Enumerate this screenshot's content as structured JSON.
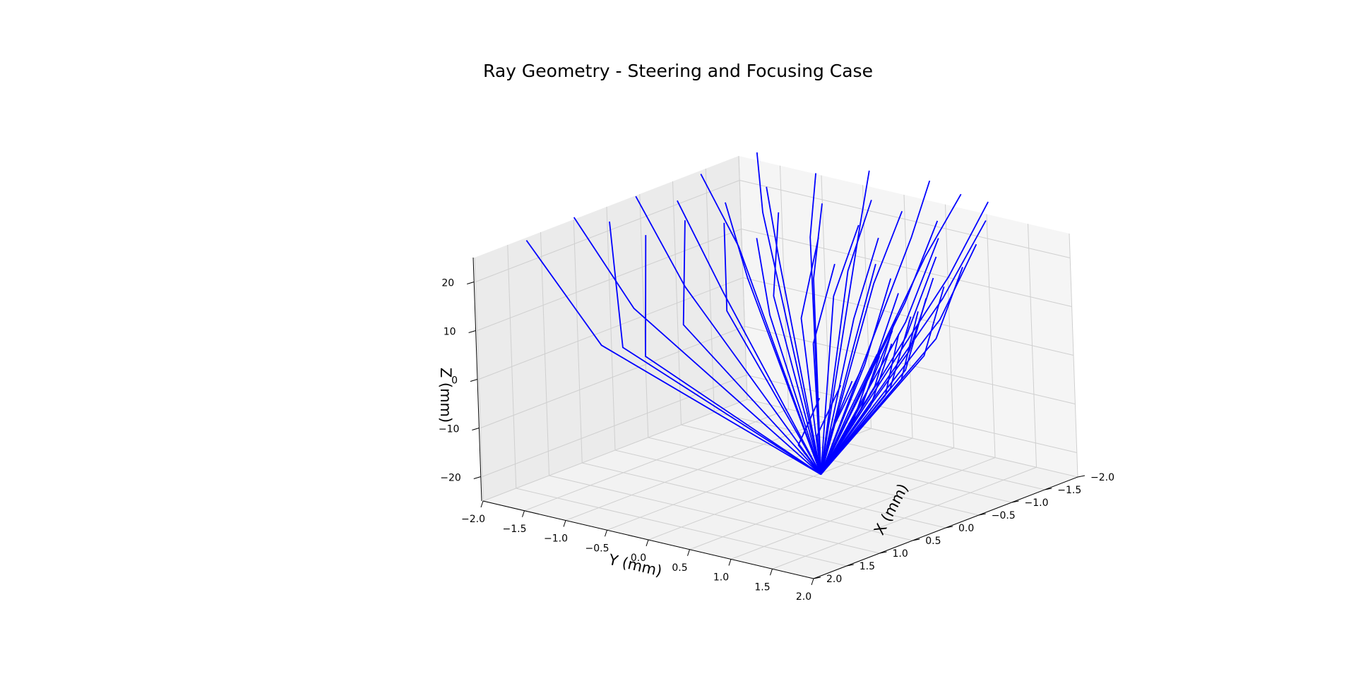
{
  "chart_data": {
    "type": "line",
    "title": "Ray Geometry - Steering and Focusing Case",
    "xlabel": "X (mm)",
    "ylabel": "Y (mm)",
    "zlabel": "Z (mm)",
    "xlim": [
      -2.0,
      2.0
    ],
    "ylim": [
      -2.0,
      2.0
    ],
    "zlim": [
      -25,
      25
    ],
    "x_ticks": [
      "−2.0",
      "−1.5",
      "−1.0",
      "−0.5",
      "0.0",
      "0.5",
      "1.0",
      "1.5",
      "2.0"
    ],
    "y_ticks": [
      "−2.0",
      "−1.5",
      "−1.0",
      "−0.5",
      "0.0",
      "0.5",
      "1.0",
      "1.5",
      "2.0"
    ],
    "z_ticks": [
      "−20",
      "−10",
      "0",
      "10",
      "20"
    ],
    "grid": true,
    "legend": "none",
    "series_color": "#0000ff",
    "focus_point": [
      0,
      0.5,
      -20
    ],
    "rays": [
      {
        "kink": [
          0.7,
          -1.55,
          2
        ],
        "end": [
          1.4,
          -1.85,
          26
        ]
      },
      {
        "kink": [
          0.32,
          -1.45,
          8
        ],
        "end": [
          0.8,
          -1.75,
          28
        ]
      },
      {
        "kink": [
          0.75,
          -1.25,
          3
        ],
        "end": [
          0.7,
          -1.4,
          28
        ]
      },
      {
        "kink": [
          -0.15,
          -1.2,
          11
        ],
        "end": [
          0.05,
          -1.6,
          29
        ]
      },
      {
        "kink": [
          0.6,
          -1.1,
          1
        ],
        "end": [
          0.35,
          -1.25,
          24
        ]
      },
      {
        "kink": [
          -0.35,
          -0.9,
          10
        ],
        "end": [
          -0.2,
          -1.3,
          28
        ]
      },
      {
        "kink": [
          -0.85,
          -1.1,
          16
        ],
        "end": [
          -0.75,
          -1.45,
          30
        ]
      },
      {
        "kink": [
          0.2,
          -0.95,
          6
        ],
        "end": [
          0.0,
          -1.05,
          26
        ]
      },
      {
        "kink": [
          -0.6,
          -0.8,
          12
        ],
        "end": [
          -0.55,
          -1.0,
          27
        ]
      },
      {
        "kink": [
          -1.35,
          -1.2,
          20
        ],
        "end": [
          -1.6,
          -1.45,
          30
        ]
      },
      {
        "kink": [
          -0.15,
          -0.7,
          8
        ],
        "end": [
          -0.4,
          -0.9,
          24
        ]
      },
      {
        "kink": [
          -0.95,
          -0.7,
          15
        ],
        "end": [
          -1.05,
          -0.9,
          28
        ]
      },
      {
        "kink": [
          -0.55,
          -0.45,
          10
        ],
        "end": [
          -0.85,
          -0.6,
          25
        ]
      },
      {
        "kink": [
          -1.25,
          -0.55,
          18
        ],
        "end": [
          -1.55,
          -0.7,
          29
        ]
      },
      {
        "kink": [
          -0.3,
          -0.3,
          8
        ],
        "end": [
          -0.45,
          -0.55,
          22
        ]
      },
      {
        "kink": [
          -0.85,
          -0.2,
          13
        ],
        "end": [
          -1.2,
          -0.35,
          26
        ]
      },
      {
        "kink": [
          -1.5,
          -0.15,
          20
        ],
        "end": [
          -1.8,
          -0.25,
          30
        ]
      },
      {
        "kink": [
          -0.4,
          0.0,
          8
        ],
        "end": [
          -0.7,
          0.0,
          23
        ]
      },
      {
        "kink": [
          -1.0,
          0.1,
          15
        ],
        "end": [
          -1.45,
          0.05,
          27
        ]
      },
      {
        "kink": [
          -0.65,
          0.2,
          12
        ],
        "end": [
          -1.0,
          0.25,
          25
        ]
      },
      {
        "kink": [
          -1.6,
          0.4,
          20
        ],
        "end": [
          -1.9,
          0.4,
          30
        ]
      },
      {
        "kink": [
          -0.2,
          0.3,
          5
        ],
        "end": [
          -0.5,
          0.35,
          20
        ]
      },
      {
        "kink": [
          -0.95,
          0.45,
          14
        ],
        "end": [
          -1.35,
          0.5,
          27
        ]
      },
      {
        "kink": [
          -0.45,
          0.6,
          10
        ],
        "end": [
          -0.8,
          0.65,
          25
        ]
      },
      {
        "kink": [
          -1.3,
          0.8,
          19
        ],
        "end": [
          -1.75,
          0.9,
          30
        ]
      },
      {
        "kink": [
          -0.25,
          0.75,
          6
        ],
        "end": [
          -0.5,
          0.85,
          22
        ]
      },
      {
        "kink": [
          -0.8,
          0.95,
          13
        ],
        "end": [
          -1.2,
          1.05,
          28
        ]
      },
      {
        "kink": [
          -0.1,
          1.0,
          4
        ],
        "end": [
          -0.35,
          1.15,
          21
        ]
      },
      {
        "kink": [
          -0.55,
          1.15,
          11
        ],
        "end": [
          -0.9,
          1.3,
          27
        ]
      },
      {
        "kink": [
          -1.1,
          1.25,
          18
        ],
        "end": [
          -1.6,
          1.35,
          31
        ]
      },
      {
        "kink": [
          0.05,
          1.2,
          4
        ],
        "end": [
          -0.15,
          1.4,
          20
        ]
      },
      {
        "kink": [
          -0.3,
          1.35,
          10
        ],
        "end": [
          -0.55,
          1.55,
          26
        ]
      },
      {
        "kink": [
          -0.75,
          1.45,
          16
        ],
        "end": [
          -1.25,
          1.6,
          30
        ]
      },
      {
        "kink": [
          0.25,
          1.4,
          3
        ],
        "end": [
          0.2,
          1.65,
          18
        ]
      },
      {
        "kink": [
          -0.1,
          1.55,
          9
        ],
        "end": [
          -0.25,
          1.75,
          24
        ]
      },
      {
        "kink": [
          -0.45,
          1.65,
          14
        ],
        "end": [
          -0.85,
          1.8,
          28
        ]
      },
      {
        "kink": [
          0.55,
          1.5,
          2
        ],
        "end": [
          0.45,
          1.8,
          17
        ]
      },
      {
        "kink": [
          0.15,
          1.7,
          7
        ],
        "end": [
          0.05,
          1.9,
          22
        ]
      },
      {
        "kink": [
          -0.2,
          1.8,
          12
        ],
        "end": [
          -0.45,
          1.95,
          26
        ]
      },
      {
        "kink": [
          0.85,
          1.55,
          1
        ],
        "end": [
          0.75,
          1.85,
          14
        ]
      },
      {
        "kink": [
          0.45,
          1.75,
          5
        ],
        "end": [
          0.35,
          1.95,
          20
        ]
      },
      {
        "kink": [
          0.05,
          1.85,
          10
        ],
        "end": [
          -0.1,
          2.0,
          24
        ]
      },
      {
        "kink": [
          1.05,
          1.55,
          0
        ],
        "end": [
          1.0,
          1.85,
          12
        ]
      },
      {
        "kink": [
          0.75,
          1.75,
          3
        ],
        "end": [
          0.65,
          1.95,
          16
        ]
      },
      {
        "kink": [
          0.4,
          1.85,
          7
        ],
        "end": [
          0.3,
          2.0,
          21
        ]
      },
      {
        "kink": [
          1.2,
          1.45,
          -2
        ],
        "end": [
          1.25,
          1.8,
          10
        ]
      },
      {
        "kink": [
          0.95,
          1.7,
          1
        ],
        "end": [
          0.95,
          1.95,
          13
        ]
      },
      {
        "kink": [
          0.65,
          1.85,
          5
        ],
        "end": [
          0.6,
          2.0,
          18
        ]
      },
      {
        "kink": [
          1.3,
          1.3,
          -4
        ],
        "end": [
          1.45,
          1.7,
          8
        ]
      },
      {
        "kink": [
          1.1,
          1.55,
          -1
        ],
        "end": [
          1.2,
          1.9,
          11
        ]
      },
      {
        "kink": [
          0.9,
          1.75,
          3
        ],
        "end": [
          0.9,
          2.0,
          15
        ]
      }
    ]
  }
}
